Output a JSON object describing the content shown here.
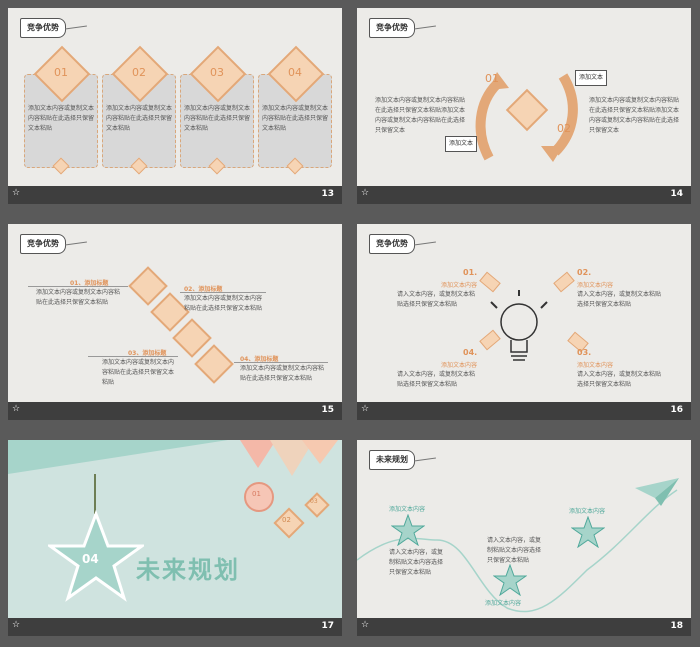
{
  "slides": [
    {
      "num": "13",
      "tag": "竞争优势",
      "items": [
        {
          "n": "01",
          "text": "添加文本内容或复制文本内容粘贴在此选择只保留文本粘贴"
        },
        {
          "n": "02",
          "text": "添加文本内容或复制文本内容粘贴在此选择只保留文本粘贴"
        },
        {
          "n": "03",
          "text": "添加文本内容或复制文本内容粘贴在此选择只保留文本粘贴"
        },
        {
          "n": "04",
          "text": "添加文本内容或复制文本内容粘贴在此选择只保留文本粘贴"
        }
      ]
    },
    {
      "num": "14",
      "tag": "竞争优势",
      "left_text": "添加文本内容或复制文本内容粘贴在此选择只保留文本粘贴添加文本内容或复制文本内容粘贴在此选择只保留文本",
      "right_text": "添加文本内容或复制文本内容粘贴在此选择只保留文本粘贴添加文本内容或复制文本内容粘贴在此选择只保留文本",
      "cycle_1": "01",
      "cycle_2": "02",
      "note_left": "添加文本",
      "note_right": "添加文本"
    },
    {
      "num": "15",
      "tag": "竞争优势",
      "steps": [
        {
          "label": "01、添加标题",
          "text": "添加文本内容或复制文本内容粘贴在此选择只保留文本粘贴"
        },
        {
          "label": "02、添加标题",
          "text": "添加文本内容或复制文本内容粘贴在此选择只保留文本粘贴"
        },
        {
          "label": "03、添加标题",
          "text": "添加文本内容或复制文本内容粘贴在此选择只保留文本粘贴"
        },
        {
          "label": "04、添加标题",
          "text": "添加文本内容或复制文本内容粘贴在此选择只保留文本粘贴"
        }
      ]
    },
    {
      "num": "16",
      "tag": "竞争优势",
      "points": [
        {
          "n": "01.",
          "title": "添加文本内容",
          "text": "请入文本内容，或复制文本粘贴选择只保留文本粘贴"
        },
        {
          "n": "02.",
          "title": "添加文本内容",
          "text": "请入文本内容，或复制文本粘贴选择只保留文本粘贴"
        },
        {
          "n": "04.",
          "title": "添加文本内容",
          "text": "请入文本内容，或复制文本粘贴选择只保留文本粘贴"
        },
        {
          "n": "03.",
          "title": "添加文本内容",
          "text": "请入文本内容，或复制文本粘贴选择只保留文本粘贴"
        }
      ]
    },
    {
      "num": "17",
      "title": "未来规划",
      "star_n": "04",
      "h1": "01",
      "h2": "02",
      "h3": "03"
    },
    {
      "num": "18",
      "tag": "未来规划",
      "title_a": "添加文本内容",
      "title_b": "添加文本内容",
      "title_c": "添加文本内容",
      "text_a": "请入文本内容，或复制粘贴文本内容选择只保留文本粘贴",
      "text_b": "请入文本内容，或复制粘贴文本内容选择只保留文本粘贴"
    }
  ]
}
